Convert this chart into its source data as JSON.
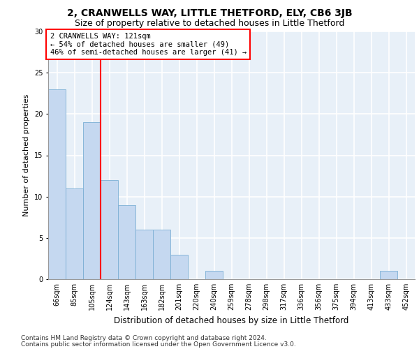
{
  "title1": "2, CRANWELLS WAY, LITTLE THETFORD, ELY, CB6 3JB",
  "title2": "Size of property relative to detached houses in Little Thetford",
  "xlabel": "Distribution of detached houses by size in Little Thetford",
  "ylabel": "Number of detached properties",
  "categories": [
    "66sqm",
    "85sqm",
    "105sqm",
    "124sqm",
    "143sqm",
    "163sqm",
    "182sqm",
    "201sqm",
    "220sqm",
    "240sqm",
    "259sqm",
    "278sqm",
    "298sqm",
    "317sqm",
    "336sqm",
    "356sqm",
    "375sqm",
    "394sqm",
    "413sqm",
    "433sqm",
    "452sqm"
  ],
  "values": [
    23,
    11,
    19,
    12,
    9,
    6,
    6,
    3,
    0,
    1,
    0,
    0,
    0,
    0,
    0,
    0,
    0,
    0,
    0,
    1,
    0
  ],
  "bar_color": "#c5d8f0",
  "bar_edge_color": "#7bafd4",
  "bar_width": 1.0,
  "vline_x": 2.5,
  "vline_color": "red",
  "annotation_text": "2 CRANWELLS WAY: 121sqm\n← 54% of detached houses are smaller (49)\n46% of semi-detached houses are larger (41) →",
  "annotation_box_color": "white",
  "annotation_box_edge_color": "red",
  "ylim": [
    0,
    30
  ],
  "yticks": [
    0,
    5,
    10,
    15,
    20,
    25,
    30
  ],
  "background_color": "#e8f0f8",
  "grid_color": "white",
  "footer1": "Contains HM Land Registry data © Crown copyright and database right 2024.",
  "footer2": "Contains public sector information licensed under the Open Government Licence v3.0.",
  "title1_fontsize": 10,
  "title2_fontsize": 9,
  "xlabel_fontsize": 8.5,
  "ylabel_fontsize": 8,
  "tick_fontsize": 7,
  "annotation_fontsize": 7.5,
  "footer_fontsize": 6.5
}
